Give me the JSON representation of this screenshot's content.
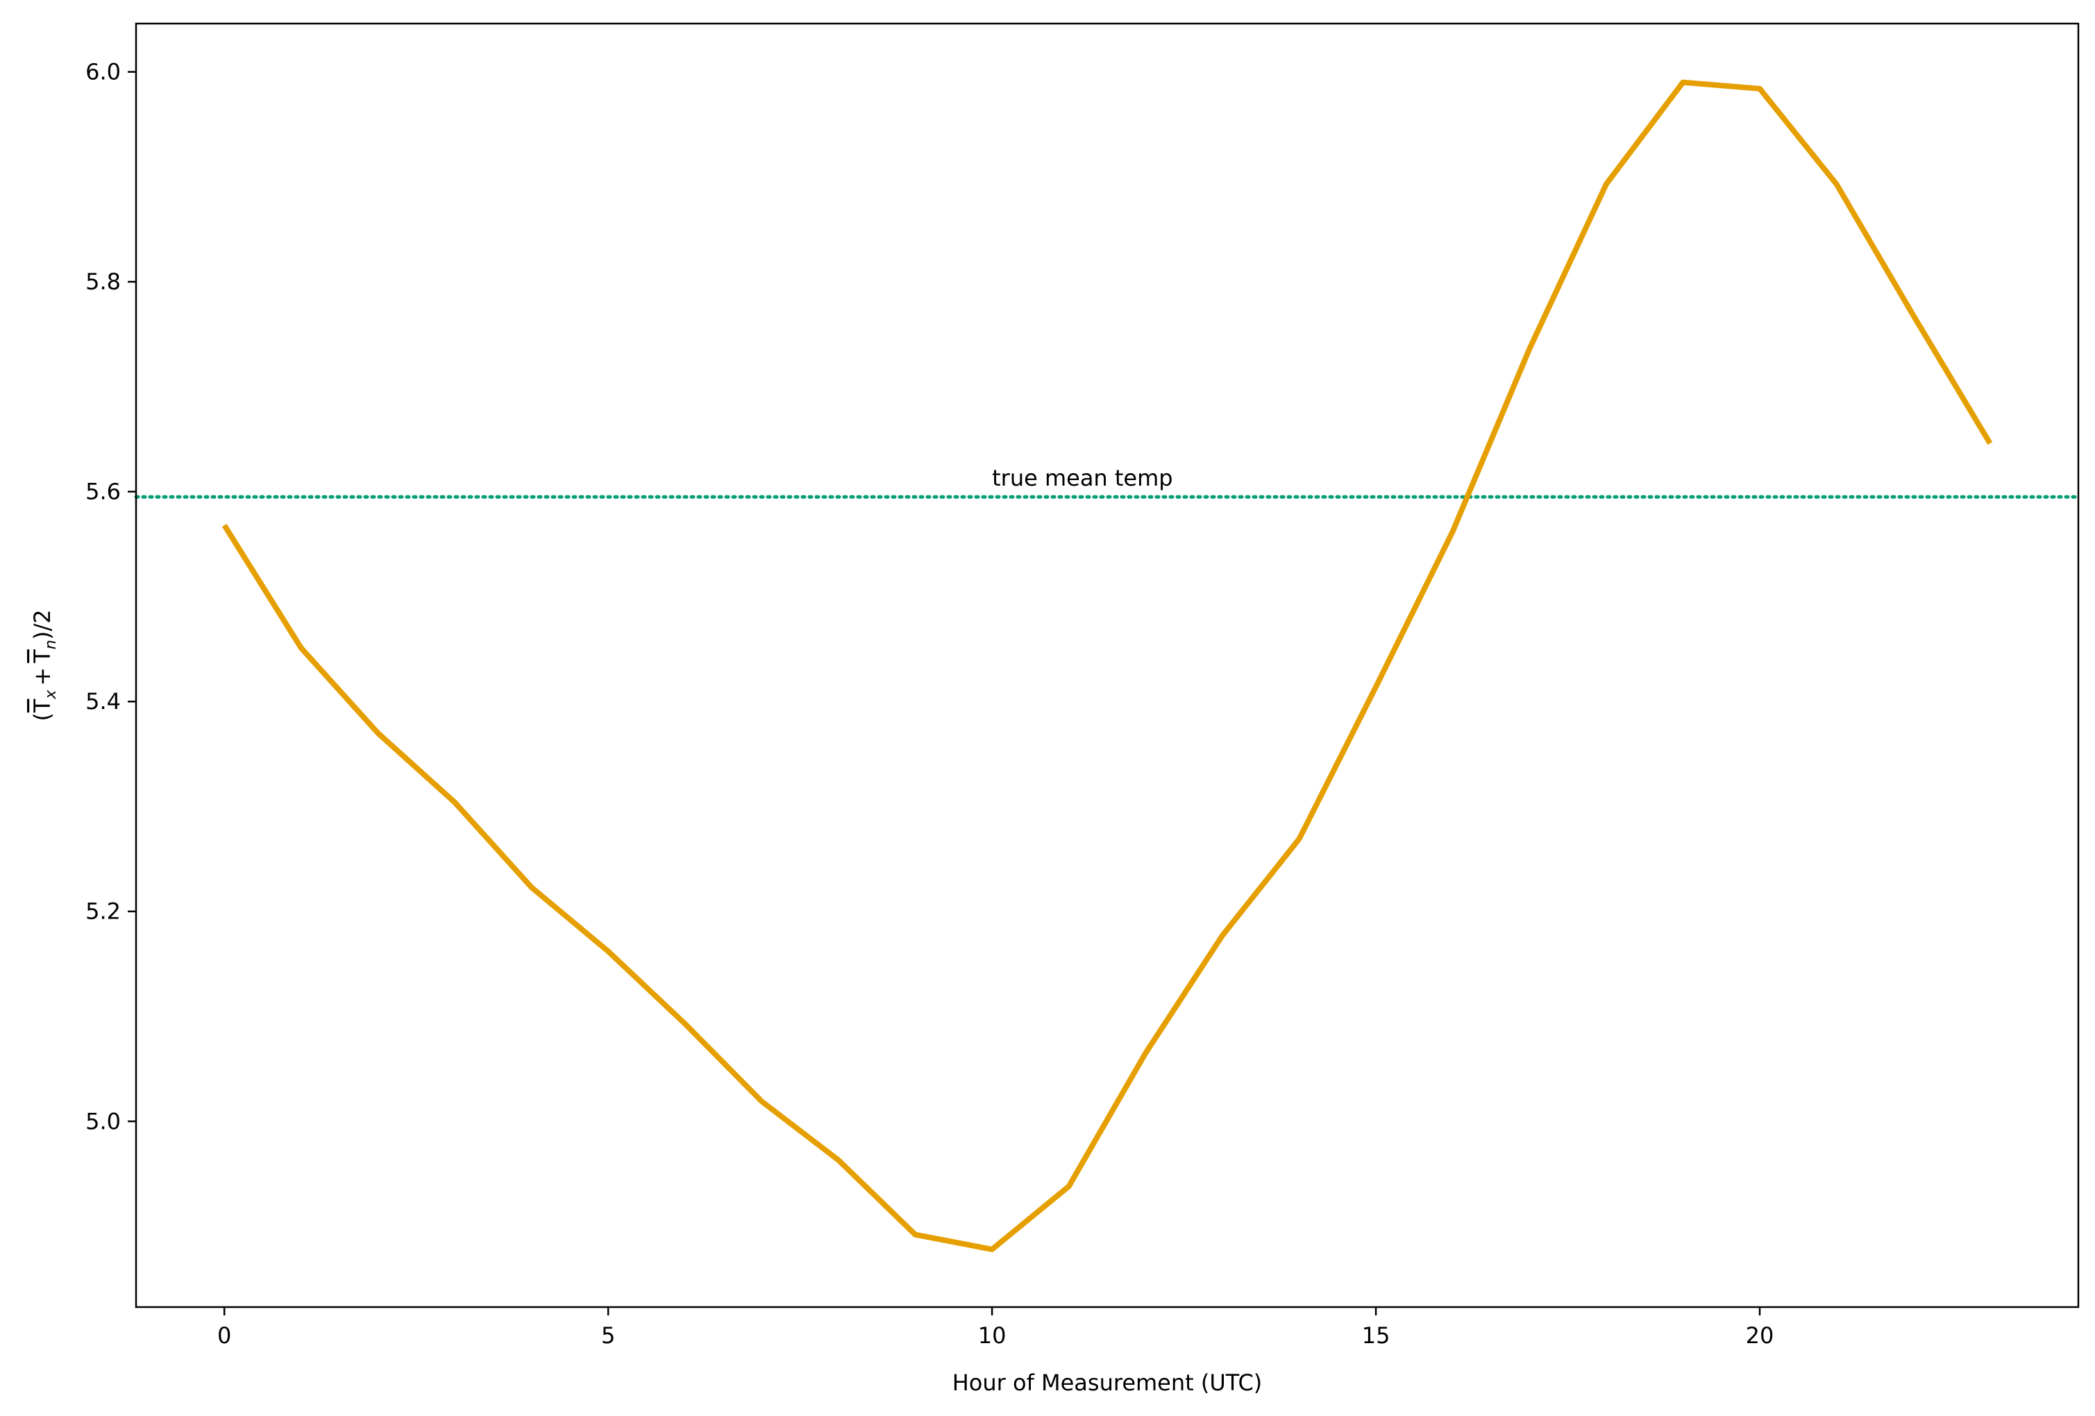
{
  "chart_data": {
    "type": "line",
    "title": "",
    "xlabel": "Hour of Measurement (UTC)",
    "ylabel_parts": {
      "open": "(",
      "tx": "T",
      "tx_sub": "x",
      "plus": "+",
      "tn": "T",
      "tn_sub": "n",
      "close": ")/2"
    },
    "xlim": [
      -1.15,
      24.15
    ],
    "ylim": [
      4.823,
      6.046
    ],
    "xticks": [
      0,
      5,
      10,
      15,
      20
    ],
    "yticks": [
      5.0,
      5.2,
      5.4,
      5.6,
      5.8,
      6.0
    ],
    "ytick_labels": [
      "5.0",
      "5.2",
      "5.4",
      "5.6",
      "5.8",
      "6.0"
    ],
    "grid": false,
    "series": [
      {
        "color": "#E69F00",
        "style": "solid",
        "x": [
          0,
          1,
          2,
          3,
          4,
          5,
          6,
          7,
          8,
          9,
          10,
          11,
          12,
          13,
          14,
          15,
          16,
          17,
          18,
          19,
          20,
          21,
          22,
          23
        ],
        "y": [
          5.568,
          5.451,
          5.37,
          5.304,
          5.223,
          5.162,
          5.093,
          5.019,
          4.963,
          4.892,
          4.878,
          4.938,
          5.065,
          5.177,
          5.269,
          5.414,
          5.562,
          5.736,
          5.893,
          5.99,
          5.984,
          5.893,
          5.768,
          5.646
        ]
      }
    ],
    "reference_line": {
      "y": 5.595,
      "color": "#009E73",
      "style": "dotted",
      "label": "true mean temp",
      "label_x": 10
    }
  }
}
